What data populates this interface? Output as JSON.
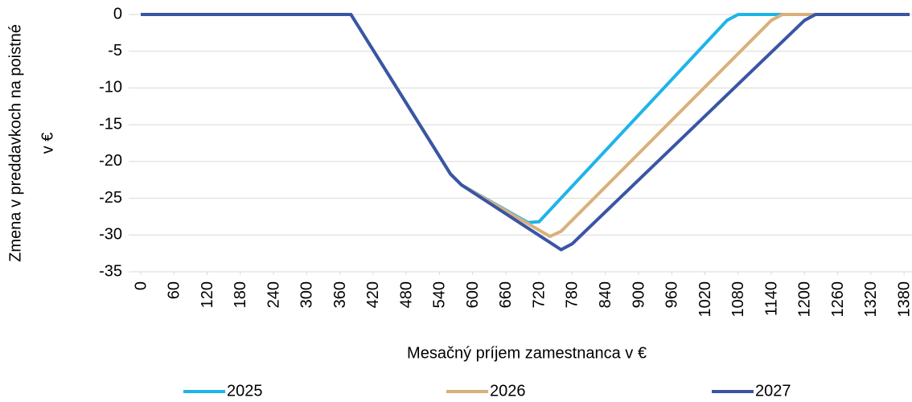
{
  "chart_data": {
    "type": "line",
    "x_label": "Mesačný príjem zamestnanca v €",
    "y_label": [
      "Zmena v preddavkoch na poistné",
      "v €"
    ],
    "xlim": [
      0,
      1390
    ],
    "xticks": [
      0,
      60,
      120,
      180,
      240,
      300,
      360,
      420,
      480,
      540,
      600,
      660,
      720,
      780,
      840,
      900,
      960,
      1020,
      1080,
      1140,
      1200,
      1260,
      1320,
      1380
    ],
    "ylim": [
      -35,
      0
    ],
    "yticks": [
      0,
      -5,
      -10,
      -15,
      -20,
      -25,
      -30,
      -35
    ],
    "grid": true,
    "legend": "bottom",
    "series": [
      {
        "name": "2025",
        "color": "#1fb4e8",
        "x": [
          0,
          380,
          560,
          580,
          700,
          720,
          1060,
          1080,
          1390
        ],
        "values": [
          0,
          0,
          -21.7,
          -23.2,
          -28.3,
          -28.2,
          -0.8,
          0,
          0
        ]
      },
      {
        "name": "2026",
        "color": "#d9b07c",
        "x": [
          0,
          380,
          560,
          580,
          740,
          760,
          1140,
          1160,
          1390
        ],
        "values": [
          0,
          0,
          -21.7,
          -23.2,
          -30.2,
          -29.5,
          -0.8,
          0,
          0
        ]
      },
      {
        "name": "2027",
        "color": "#3a55a4",
        "x": [
          0,
          380,
          560,
          580,
          760,
          780,
          1200,
          1220,
          1390
        ],
        "values": [
          0,
          0,
          -21.7,
          -23.2,
          -32,
          -31.2,
          -0.8,
          0,
          0
        ]
      }
    ]
  }
}
